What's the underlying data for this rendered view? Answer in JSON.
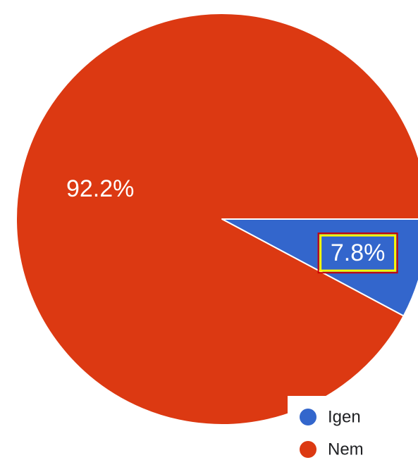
{
  "chart_data": {
    "type": "pie",
    "slices": [
      {
        "label": "Igen",
        "value": 7.8,
        "display": "7.8%",
        "color": "#3366cc"
      },
      {
        "label": "Nem",
        "value": 92.2,
        "display": "92.2%",
        "color": "#dc3912"
      }
    ],
    "legend": {
      "placement": "bottom-right",
      "items": [
        {
          "label": "Igen",
          "color": "#3366cc"
        },
        {
          "label": "Nem",
          "color": "#dc3912"
        }
      ]
    },
    "highlight": {
      "target": "Igen",
      "stroke": "#cc0000",
      "inner": "#ffff00"
    }
  }
}
